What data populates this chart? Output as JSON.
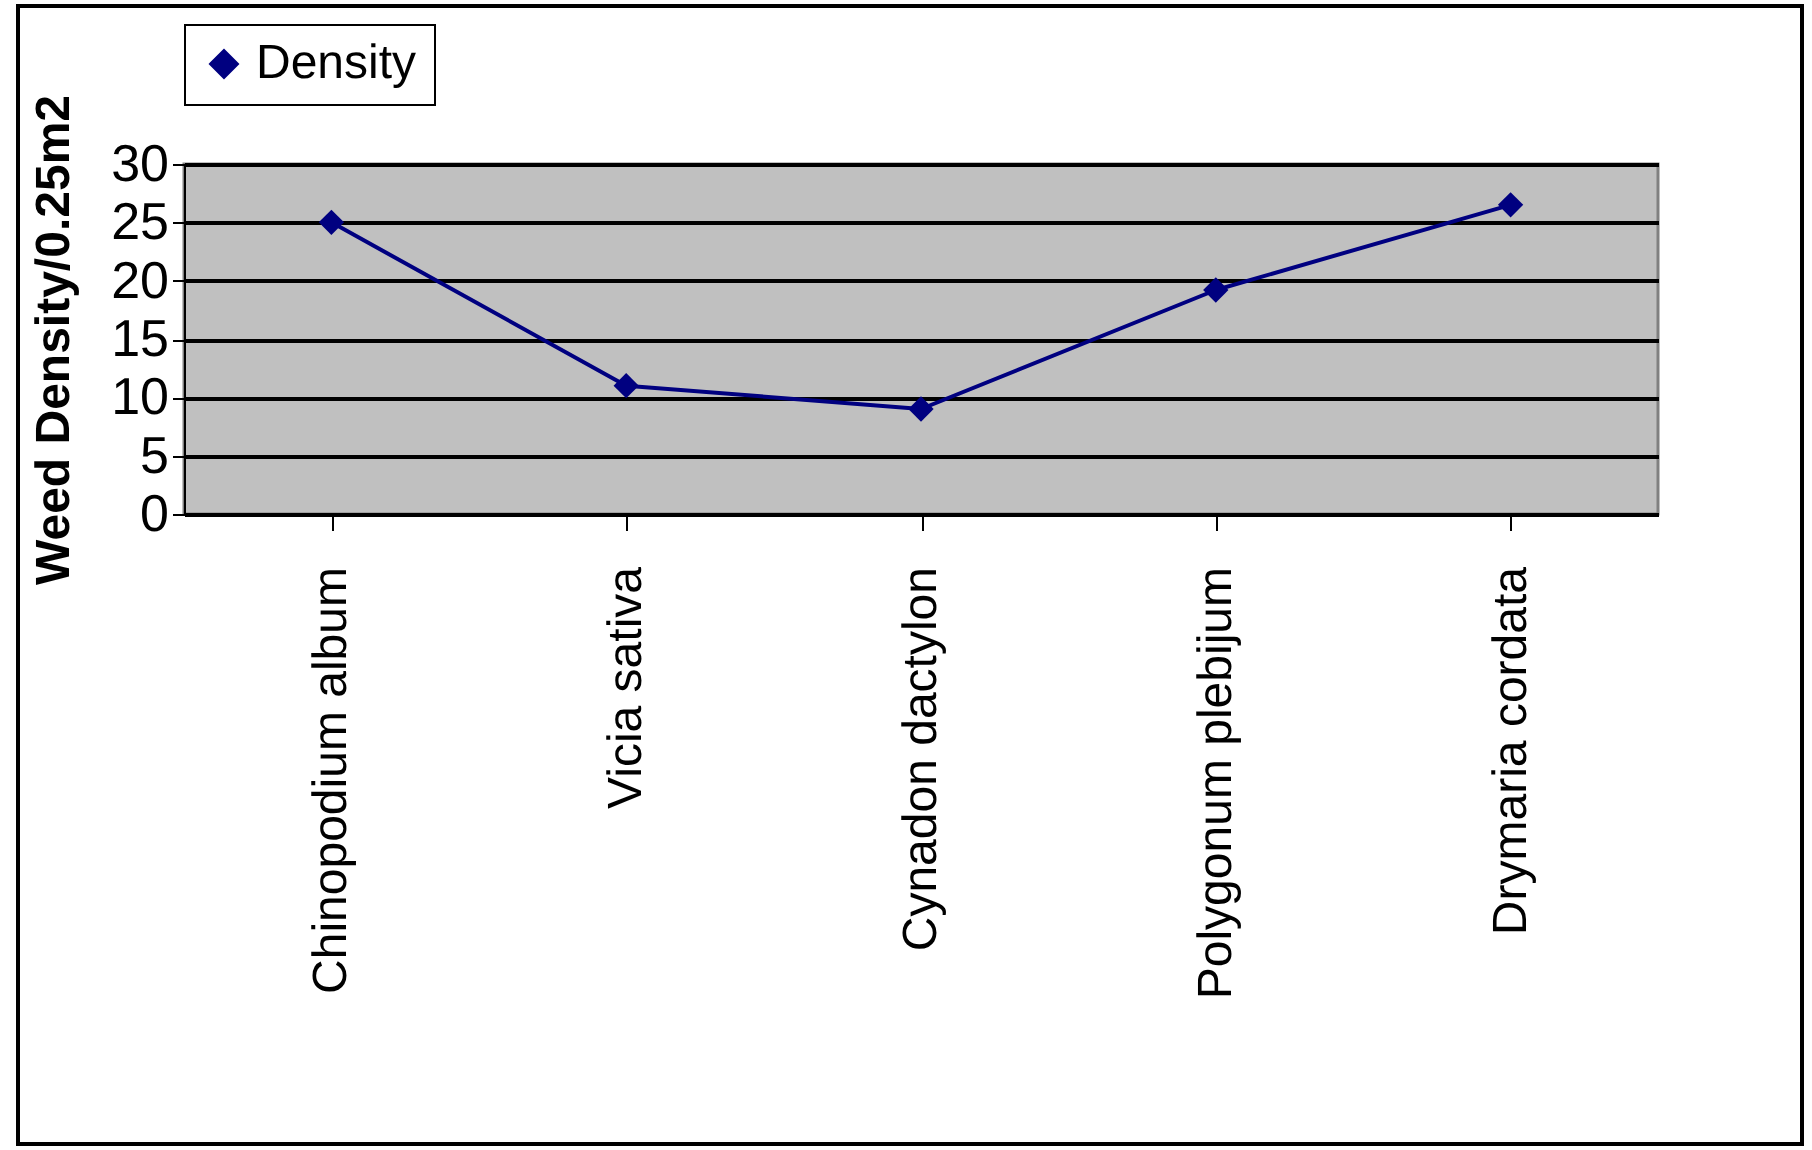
{
  "chart_data": {
    "type": "line",
    "ylabel": "Weed Density/0.25m2",
    "categories": [
      "Chinopodium album",
      "Vicia  sativa",
      "Cynadon dactylon",
      "Polygonum plebijum",
      "Drymaria cordata"
    ],
    "series": [
      {
        "name": "Density",
        "color": "#000080",
        "values": [
          25,
          11,
          9,
          19.2,
          26.5
        ]
      }
    ],
    "ylim": [
      0,
      30
    ],
    "yticks": [
      0,
      5,
      10,
      15,
      20,
      25,
      30
    ],
    "grid": "y",
    "legend": "top",
    "marker": "diamond",
    "line_style": "solid"
  }
}
